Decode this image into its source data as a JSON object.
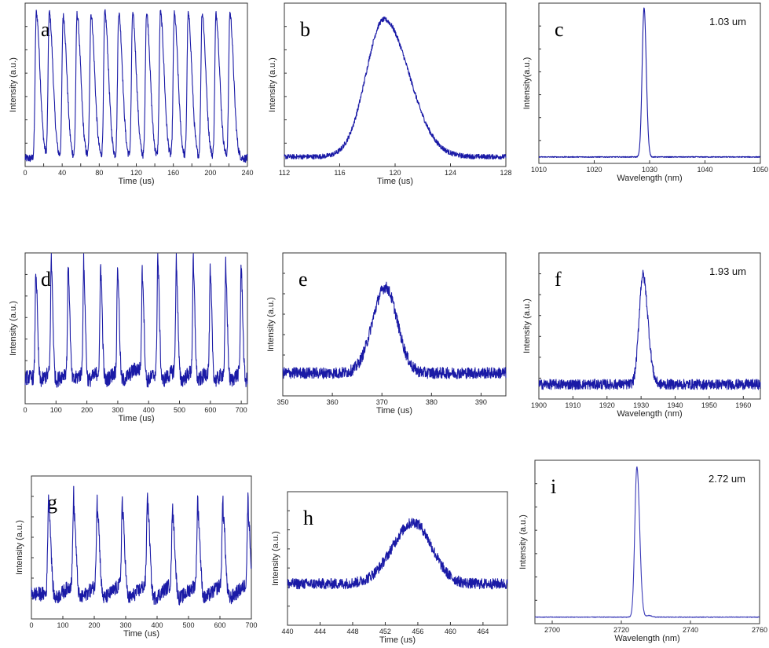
{
  "chart_data": [
    {
      "panel_letter": "a",
      "type": "line",
      "xlabel": "Time (us)",
      "ylabel": "Intensity (a.u.)",
      "annotation": "",
      "xlim": [
        0,
        240
      ],
      "xticks": [
        0,
        20,
        40,
        60,
        80,
        100,
        120,
        140,
        160,
        180,
        200,
        220,
        240
      ],
      "xticklabels": [
        "0",
        "",
        "40",
        "",
        "80",
        "",
        "120",
        "",
        "160",
        "",
        "200",
        "",
        "240"
      ],
      "ylim": [
        0,
        1
      ],
      "baseline": 0.05,
      "noise": 0.025,
      "series": [
        {
          "values": "pulse train",
          "peaks_x": [
            12,
            26,
            41,
            56,
            71,
            86,
            101,
            116,
            131,
            146,
            161,
            176,
            191,
            206,
            221
          ],
          "peak_heights": [
            0.94,
            0.94,
            0.92,
            0.93,
            0.93,
            0.94,
            0.94,
            0.93,
            0.94,
            0.94,
            0.93,
            0.93,
            0.94,
            0.93,
            0.94
          ],
          "rise": 1.2,
          "decay": 4.0
        }
      ],
      "color": "#1a1aa6"
    },
    {
      "panel_letter": "b",
      "type": "line",
      "xlabel": "Time (us)",
      "ylabel": "Intensity (a.u.)",
      "annotation": "",
      "xlim": [
        112,
        128
      ],
      "xticks": [
        112,
        116,
        120,
        124,
        128
      ],
      "xticklabels": [
        "112",
        "116",
        "120",
        "124",
        "128"
      ],
      "ylim": [
        0,
        1
      ],
      "baseline": 0.06,
      "noise": 0.015,
      "series": [
        {
          "peaks_x": [
            119.2
          ],
          "peak_heights": [
            0.9
          ],
          "rise": 1.3,
          "decay": 1.8
        }
      ],
      "color": "#1a1aa6"
    },
    {
      "panel_letter": "c",
      "type": "line",
      "xlabel": "Wavelength (nm)",
      "ylabel": "Intensity(a.u.)",
      "annotation": "1.03 um",
      "xlim": [
        1010,
        1050
      ],
      "xticks": [
        1010,
        1020,
        1030,
        1040,
        1050
      ],
      "xticklabels": [
        "1010",
        "1020",
        "1030",
        "1040",
        "1050"
      ],
      "ylim": [
        0,
        1
      ],
      "baseline": 0.04,
      "noise": 0.003,
      "series": [
        {
          "peaks_x": [
            1029
          ],
          "peak_heights": [
            0.97
          ],
          "rise": 0.35,
          "decay": 0.4
        }
      ],
      "color": "#1a1aa6"
    },
    {
      "panel_letter": "d",
      "type": "line",
      "xlabel": "Time (us)",
      "ylabel": "Intensity (a.u.)",
      "annotation": "",
      "xlim": [
        0,
        720
      ],
      "xticks": [
        0,
        100,
        200,
        300,
        400,
        500,
        600,
        700
      ],
      "xticklabels": [
        "0",
        "100",
        "200",
        "300",
        "400",
        "500",
        "600",
        "700"
      ],
      "ylim": [
        0,
        1
      ],
      "baseline": 0.12,
      "noise": 0.05,
      "sawtooth": 0.18,
      "series": [
        {
          "peaks_x": [
            35,
            85,
            140,
            190,
            245,
            300,
            380,
            430,
            490,
            545,
            600,
            650,
            700
          ],
          "peak_heights": [
            0.85,
            0.9,
            0.86,
            0.86,
            0.86,
            0.86,
            0.84,
            0.92,
            0.88,
            0.86,
            0.82,
            0.84,
            0.86
          ],
          "rise": 2.5,
          "decay": 5
        }
      ],
      "color": "#1a1aa6"
    },
    {
      "panel_letter": "e",
      "type": "line",
      "xlabel": "Time (us)",
      "ylabel": "Intensity (a.u.)",
      "annotation": "",
      "xlim": [
        350,
        395
      ],
      "xticks": [
        350,
        360,
        370,
        380,
        390
      ],
      "xticklabels": [
        "350",
        "360",
        "370",
        "380",
        "390"
      ],
      "ylim": [
        0,
        1
      ],
      "baseline": 0.16,
      "noise": 0.04,
      "series": [
        {
          "peaks_x": [
            370.7
          ],
          "peak_heights": [
            0.76
          ],
          "rise": 2.6,
          "decay": 2.4
        }
      ],
      "color": "#1a1aa6"
    },
    {
      "panel_letter": "f",
      "type": "line",
      "xlabel": "Wavelength (nm)",
      "ylabel": "Intensity (a.u.)",
      "annotation": "1.93 um",
      "xlim": [
        1900,
        1965
      ],
      "xticks": [
        1900,
        1910,
        1920,
        1930,
        1940,
        1950,
        1960
      ],
      "xticklabels": [
        "1900",
        "1910",
        "1920",
        "1930",
        "1940",
        "1950",
        "1960"
      ],
      "ylim": [
        0,
        1
      ],
      "baseline": 0.1,
      "noise": 0.035,
      "series": [
        {
          "peaks_x": [
            1930.5
          ],
          "peak_heights": [
            0.85
          ],
          "rise": 1.1,
          "decay": 1.5
        }
      ],
      "color": "#1a1aa6"
    },
    {
      "panel_letter": "g",
      "type": "line",
      "xlabel": "Time (us)",
      "ylabel": "Intensity (a.u.)",
      "annotation": "",
      "xlim": [
        0,
        700
      ],
      "xticks": [
        0,
        100,
        200,
        300,
        400,
        500,
        600,
        700
      ],
      "xticklabels": [
        "0",
        "100",
        "200",
        "300",
        "400",
        "500",
        "600",
        "700"
      ],
      "ylim": [
        0,
        1
      ],
      "baseline": 0.1,
      "noise": 0.05,
      "sawtooth": 0.25,
      "series": [
        {
          "peaks_x": [
            55,
            135,
            210,
            290,
            370,
            450,
            530,
            610,
            690
          ],
          "peak_heights": [
            0.8,
            0.75,
            0.76,
            0.73,
            0.78,
            0.7,
            0.73,
            0.73,
            0.72
          ],
          "rise": 3,
          "decay": 7
        }
      ],
      "color": "#1a1aa6"
    },
    {
      "panel_letter": "h",
      "type": "line",
      "xlabel": "Time (us)",
      "ylabel": "Intensity (a.u.)",
      "annotation": "",
      "xlim": [
        440,
        467
      ],
      "xticks": [
        440,
        444,
        448,
        452,
        456,
        460,
        464
      ],
      "xticklabels": [
        "440",
        "444",
        "448",
        "452",
        "456",
        "460",
        "464"
      ],
      "ylim": [
        0,
        1
      ],
      "baseline": 0.31,
      "noise": 0.04,
      "series": [
        {
          "peaks_x": [
            455.5
          ],
          "peak_heights": [
            0.77
          ],
          "rise": 2.6,
          "decay": 2.2
        }
      ],
      "color": "#1a1aa6"
    },
    {
      "panel_letter": "i",
      "type": "line",
      "xlabel": "Wavelength (nm)",
      "ylabel": "Intensity (a.u.)",
      "annotation": "2.72 um",
      "xlim": [
        2695,
        2760
      ],
      "xticks": [
        2700,
        2720,
        2740,
        2760
      ],
      "xticklabels": [
        "2700",
        "2720",
        "2740",
        "2760"
      ],
      "ylim": [
        0,
        1
      ],
      "baseline": 0.04,
      "noise": 0.002,
      "series": [
        {
          "peaks_x": [
            2724.5,
            2728
          ],
          "peak_heights": [
            0.96,
            0.05
          ],
          "rise": 0.6,
          "decay": 0.8
        }
      ],
      "color": "#3b3bb8"
    }
  ]
}
